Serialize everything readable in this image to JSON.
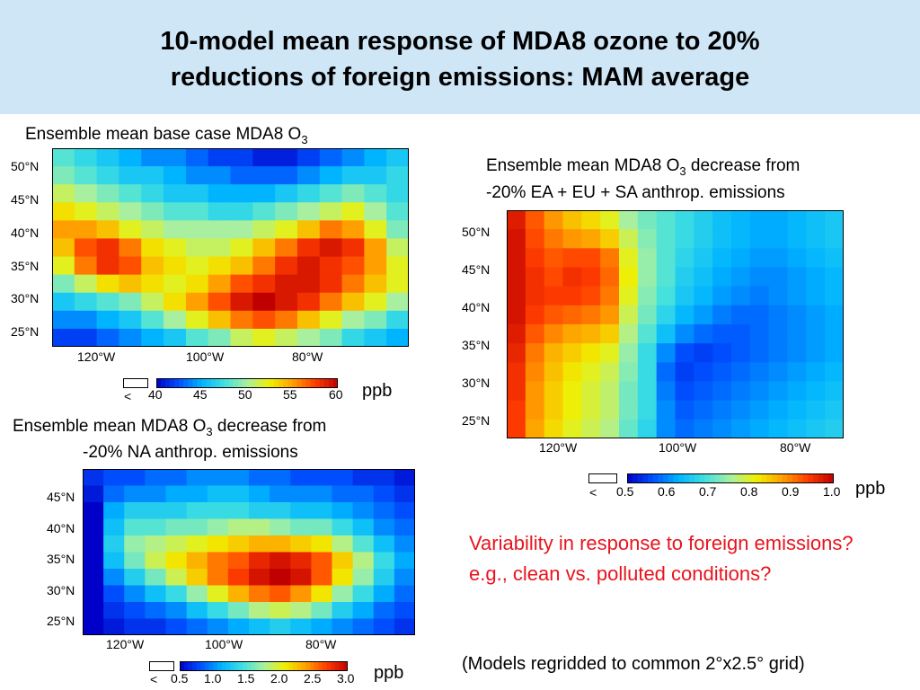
{
  "title_line1": "10-model mean response of MDA8 ozone  to 20%",
  "title_line2": "reductions of foreign emissions: MAM average",
  "note_red": "Variability in response to foreign emissions?  e.g., clean vs. polluted conditions?",
  "note_grid": "(Models regridded to common 2°x2.5° grid)",
  "colormap": [
    "#0000c8",
    "#0050ff",
    "#00b4ff",
    "#40e0e0",
    "#a8f0a0",
    "#f0f000",
    "#ffa000",
    "#ff3c00",
    "#c00000"
  ],
  "chart_data": [
    {
      "type": "heatmap",
      "title_main": "Ensemble mean base case MDA8 O",
      "title_sub": "3",
      "title_rest": "",
      "title_line2": "",
      "xticks": [
        "120°W",
        "100°W",
        "80°W"
      ],
      "yticks": [
        "50°N",
        "45°N",
        "40°N",
        "35°N",
        "30°N",
        "25°N"
      ],
      "colorbar": {
        "min": 40,
        "max": 60,
        "ticks": [
          "40",
          "45",
          "50",
          "55",
          "60"
        ],
        "below_label": "<",
        "units": "ppb"
      },
      "grid": [
        [
          48,
          47,
          46,
          45,
          44,
          44,
          43,
          42,
          42,
          41,
          41,
          42,
          43,
          44,
          45,
          46
        ],
        [
          49,
          48,
          47,
          46,
          46,
          45,
          44,
          44,
          43,
          43,
          43,
          44,
          45,
          46,
          46,
          47
        ],
        [
          51,
          50,
          49,
          48,
          47,
          46,
          46,
          45,
          45,
          45,
          46,
          47,
          48,
          49,
          48,
          47
        ],
        [
          53,
          52,
          51,
          50,
          49,
          48,
          48,
          47,
          47,
          48,
          49,
          50,
          51,
          52,
          50,
          48
        ],
        [
          55,
          55,
          54,
          52,
          51,
          50,
          50,
          50,
          50,
          51,
          52,
          54,
          56,
          55,
          52,
          49
        ],
        [
          54,
          57,
          58,
          56,
          53,
          52,
          51,
          51,
          52,
          54,
          56,
          58,
          59,
          58,
          55,
          51
        ],
        [
          52,
          56,
          58,
          57,
          54,
          53,
          52,
          53,
          54,
          56,
          58,
          59,
          58,
          57,
          55,
          52
        ],
        [
          49,
          51,
          53,
          54,
          53,
          52,
          53,
          55,
          57,
          58,
          59,
          59,
          58,
          56,
          54,
          52
        ],
        [
          46,
          47,
          48,
          49,
          51,
          53,
          55,
          57,
          59,
          60,
          59,
          58,
          56,
          54,
          52,
          50
        ],
        [
          44,
          44,
          45,
          46,
          48,
          50,
          52,
          54,
          56,
          57,
          56,
          54,
          52,
          50,
          49,
          47
        ],
        [
          42,
          42,
          43,
          44,
          45,
          46,
          48,
          49,
          51,
          52,
          51,
          50,
          49,
          47,
          46,
          45
        ]
      ]
    },
    {
      "type": "heatmap",
      "title_main": "Ensemble mean MDA8 O",
      "title_sub": "3",
      "title_rest": " decrease from",
      "title_line2": "-20% NA anthrop. emissions",
      "xticks": [
        "120°W",
        "100°W",
        "80°W"
      ],
      "yticks": [
        "45°N",
        "40°N",
        "35°N",
        "30°N",
        "25°N"
      ],
      "colorbar": {
        "min": 0.5,
        "max": 3.0,
        "ticks": [
          "0.5",
          "1.0",
          "1.5",
          "2.0",
          "2.5",
          "3.0"
        ],
        "below_label": "<",
        "units": "ppb"
      },
      "grid": [
        [
          0.7,
          0.8,
          0.8,
          0.9,
          0.9,
          1.0,
          1.0,
          1.0,
          0.9,
          0.9,
          0.8,
          0.8,
          0.8,
          0.7,
          0.7,
          0.6
        ],
        [
          0.6,
          0.9,
          1.0,
          1.0,
          1.1,
          1.1,
          1.2,
          1.2,
          1.1,
          1.0,
          1.0,
          1.0,
          0.9,
          0.9,
          0.8,
          0.7
        ],
        [
          0.5,
          1.1,
          1.3,
          1.3,
          1.3,
          1.4,
          1.4,
          1.4,
          1.3,
          1.3,
          1.2,
          1.2,
          1.1,
          1.0,
          0.9,
          0.8
        ],
        [
          0.5,
          1.2,
          1.5,
          1.5,
          1.6,
          1.6,
          1.7,
          1.8,
          1.8,
          1.7,
          1.6,
          1.6,
          1.4,
          1.2,
          1.0,
          0.9
        ],
        [
          0.5,
          1.3,
          1.7,
          1.8,
          1.9,
          2.0,
          2.1,
          2.2,
          2.3,
          2.3,
          2.2,
          2.1,
          1.8,
          1.5,
          1.2,
          1.0
        ],
        [
          0.5,
          1.2,
          1.6,
          1.9,
          2.1,
          2.3,
          2.5,
          2.6,
          2.8,
          2.9,
          2.8,
          2.6,
          2.2,
          1.8,
          1.4,
          1.1
        ],
        [
          0.5,
          1.0,
          1.3,
          1.6,
          1.9,
          2.2,
          2.5,
          2.7,
          2.9,
          3.0,
          2.9,
          2.6,
          2.1,
          1.7,
          1.3,
          1.0
        ],
        [
          0.5,
          0.8,
          1.0,
          1.2,
          1.4,
          1.7,
          2.0,
          2.3,
          2.5,
          2.6,
          2.4,
          2.1,
          1.7,
          1.4,
          1.1,
          0.9
        ],
        [
          0.5,
          0.7,
          0.8,
          0.9,
          1.0,
          1.2,
          1.4,
          1.6,
          1.8,
          1.9,
          1.8,
          1.6,
          1.3,
          1.1,
          0.9,
          0.8
        ],
        [
          0.5,
          0.6,
          0.7,
          0.7,
          0.8,
          0.9,
          1.0,
          1.1,
          1.2,
          1.3,
          1.2,
          1.1,
          1.0,
          0.9,
          0.8,
          0.7
        ]
      ]
    },
    {
      "type": "heatmap",
      "title_main": "Ensemble mean MDA8 O",
      "title_sub": "3",
      "title_rest": " decrease from",
      "title_line2": "-20% EA + EU + SA  anthrop. emissions",
      "xticks": [
        "120°W",
        "100°W",
        "80°W"
      ],
      "yticks": [
        "50°N",
        "45°N",
        "40°N",
        "35°N",
        "30°N",
        "25°N"
      ],
      "colorbar": {
        "min": 0.5,
        "max": 1.0,
        "ticks": [
          "0.5",
          "0.6",
          "0.7",
          "0.8",
          "0.9",
          "1.0"
        ],
        "below_label": "<",
        "units": "ppb"
      },
      "grid": [
        [
          0.97,
          0.92,
          0.88,
          0.85,
          0.83,
          0.8,
          0.75,
          0.72,
          0.7,
          0.68,
          0.66,
          0.64,
          0.63,
          0.62,
          0.62,
          0.63,
          0.64,
          0.65
        ],
        [
          0.98,
          0.93,
          0.9,
          0.88,
          0.87,
          0.84,
          0.78,
          0.73,
          0.7,
          0.68,
          0.66,
          0.64,
          0.63,
          0.62,
          0.62,
          0.63,
          0.64,
          0.65
        ],
        [
          0.98,
          0.94,
          0.92,
          0.93,
          0.93,
          0.9,
          0.8,
          0.74,
          0.7,
          0.67,
          0.65,
          0.63,
          0.62,
          0.61,
          0.61,
          0.62,
          0.63,
          0.64
        ],
        [
          0.98,
          0.95,
          0.93,
          0.95,
          0.94,
          0.91,
          0.81,
          0.74,
          0.7,
          0.66,
          0.64,
          0.62,
          0.61,
          0.6,
          0.6,
          0.61,
          0.62,
          0.63
        ],
        [
          0.98,
          0.95,
          0.94,
          0.94,
          0.93,
          0.9,
          0.8,
          0.73,
          0.69,
          0.65,
          0.63,
          0.61,
          0.6,
          0.59,
          0.6,
          0.61,
          0.62,
          0.63
        ],
        [
          0.98,
          0.94,
          0.92,
          0.91,
          0.9,
          0.88,
          0.78,
          0.72,
          0.67,
          0.63,
          0.61,
          0.59,
          0.58,
          0.58,
          0.59,
          0.6,
          0.61,
          0.62
        ],
        [
          0.97,
          0.92,
          0.89,
          0.87,
          0.86,
          0.84,
          0.76,
          0.7,
          0.64,
          0.6,
          0.58,
          0.57,
          0.57,
          0.58,
          0.59,
          0.6,
          0.61,
          0.62
        ],
        [
          0.96,
          0.9,
          0.86,
          0.84,
          0.82,
          0.8,
          0.74,
          0.68,
          0.6,
          0.56,
          0.55,
          0.56,
          0.57,
          0.58,
          0.59,
          0.6,
          0.61,
          0.62
        ],
        [
          0.95,
          0.89,
          0.85,
          0.82,
          0.8,
          0.78,
          0.73,
          0.68,
          0.58,
          0.55,
          0.56,
          0.57,
          0.58,
          0.59,
          0.6,
          0.61,
          0.62,
          0.63
        ],
        [
          0.95,
          0.88,
          0.84,
          0.81,
          0.79,
          0.77,
          0.72,
          0.68,
          0.59,
          0.56,
          0.57,
          0.58,
          0.59,
          0.6,
          0.61,
          0.62,
          0.63,
          0.64
        ],
        [
          0.94,
          0.88,
          0.84,
          0.81,
          0.79,
          0.77,
          0.72,
          0.68,
          0.6,
          0.57,
          0.58,
          0.59,
          0.6,
          0.61,
          0.62,
          0.63,
          0.64,
          0.65
        ],
        [
          0.94,
          0.87,
          0.83,
          0.8,
          0.78,
          0.76,
          0.71,
          0.67,
          0.6,
          0.58,
          0.59,
          0.6,
          0.61,
          0.62,
          0.63,
          0.64,
          0.65,
          0.66
        ]
      ]
    }
  ]
}
